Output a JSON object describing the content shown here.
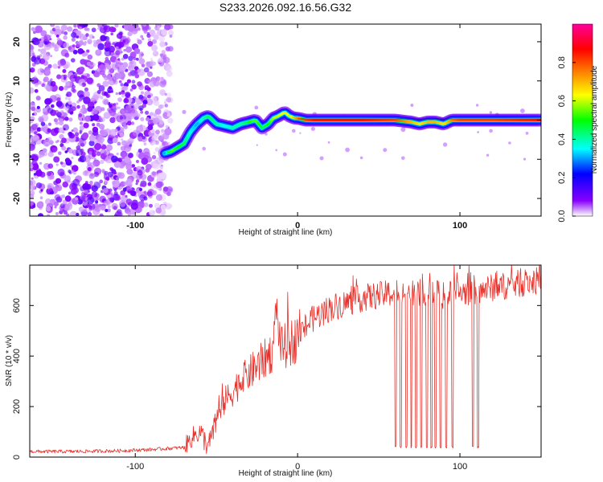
{
  "figure": {
    "title": "S233.2026.092.16.56.G32"
  },
  "chart_data": [
    {
      "type": "heatmap",
      "xlabel": "Height of straight line (km)",
      "ylabel": "Frequency (Hz)",
      "xlim": [
        -165,
        150
      ],
      "ylim": [
        -24.5,
        24.5
      ],
      "x_ticks": [
        -100,
        0,
        100
      ],
      "x_tick_labels": [
        "-100",
        "0",
        "100"
      ],
      "y_ticks": [
        -20,
        -10,
        0,
        10,
        20
      ],
      "y_tick_labels": [
        "-20",
        "-10",
        "0",
        "10",
        "20"
      ],
      "colorbar": {
        "label": "Normalized spectral amplitude",
        "range": [
          0,
          1
        ],
        "ticks": [
          0.0,
          0.2,
          0.4,
          0.6,
          0.8
        ],
        "tick_labels": [
          "0.0",
          "0.2",
          "0.4",
          "0.6",
          "0.8"
        ],
        "colors": [
          "#ffffff",
          "#8800ff",
          "#0000ff",
          "#00ffff",
          "#00ff00",
          "#ffff00",
          "#ff8000",
          "#ff0000",
          "#ff0099"
        ]
      },
      "noise_region": {
        "x": [
          -165,
          -82
        ],
        "y": [
          -24.5,
          24.5
        ]
      },
      "ridge": {
        "x": [
          -82,
          -78,
          -74,
          -70,
          -66,
          -62,
          -58,
          -55,
          -50,
          -45,
          -40,
          -35,
          -30,
          -26,
          -22,
          -18,
          -15,
          -12,
          -8,
          -5,
          -2,
          0,
          5,
          10,
          20,
          40,
          60,
          70,
          75,
          80,
          85,
          90,
          95,
          100,
          110,
          120,
          150
        ],
        "y": [
          -8.5,
          -8.0,
          -7.0,
          -6.0,
          -3.0,
          -1.0,
          0.5,
          1.0,
          -1.0,
          -1.5,
          -2.0,
          -1.0,
          -0.5,
          0.0,
          -2.0,
          -1.0,
          0.5,
          1.0,
          2.0,
          1.0,
          0.5,
          0.5,
          0.0,
          0.0,
          0.0,
          0.0,
          0.0,
          -0.5,
          -1.0,
          -0.5,
          -0.5,
          -1.0,
          0.0,
          0.0,
          0.0,
          0.0,
          0.0
        ],
        "amplitude": [
          0.3,
          0.55,
          0.5,
          0.45,
          0.35,
          0.3,
          0.4,
          0.45,
          0.4,
          0.35,
          0.4,
          0.4,
          0.5,
          0.55,
          0.45,
          0.5,
          0.6,
          0.6,
          0.65,
          0.6,
          0.7,
          0.75,
          0.8,
          0.85,
          0.85,
          0.85,
          0.8,
          0.7,
          0.65,
          0.7,
          0.7,
          0.65,
          0.75,
          0.8,
          0.8,
          0.8,
          0.85
        ]
      }
    },
    {
      "type": "line",
      "xlabel": "Height of straight line (km)",
      "ylabel": "SNR (10 * v/v)",
      "xlim": [
        -165,
        150
      ],
      "ylim": [
        0,
        760
      ],
      "x_ticks": [
        -100,
        0,
        100
      ],
      "x_tick_labels": [
        "-100",
        "0",
        "100"
      ],
      "y_ticks": [
        0,
        200,
        400,
        600
      ],
      "y_tick_labels": [
        "0",
        "200",
        "400",
        "600"
      ],
      "line_color": "#e8302a",
      "series": [
        {
          "x": [
            -165,
            -140,
            -110,
            -90,
            -70,
            -64,
            -60,
            -55,
            -50,
            -45,
            -40,
            -35,
            -30,
            -25,
            -20,
            -15,
            -13,
            -10,
            -5,
            0,
            5,
            10,
            15,
            20,
            25,
            30,
            40,
            50,
            60,
            70,
            80,
            90,
            100,
            110,
            120,
            130,
            140,
            150
          ],
          "y": [
            22,
            22,
            25,
            30,
            38,
            85,
            100,
            40,
            140,
            220,
            260,
            300,
            330,
            360,
            390,
            420,
            580,
            430,
            450,
            470,
            520,
            550,
            570,
            590,
            600,
            610,
            630,
            640,
            650,
            655,
            650,
            640,
            650,
            660,
            670,
            680,
            690,
            700
          ]
        }
      ],
      "dropouts_x": [
        60.5,
        63.5,
        67.0,
        70.0,
        73.0,
        76.0,
        79.5,
        82.5,
        85.0,
        88.0,
        91.5,
        95.5,
        108.0,
        111.0
      ],
      "dropout_value": 35
    }
  ]
}
